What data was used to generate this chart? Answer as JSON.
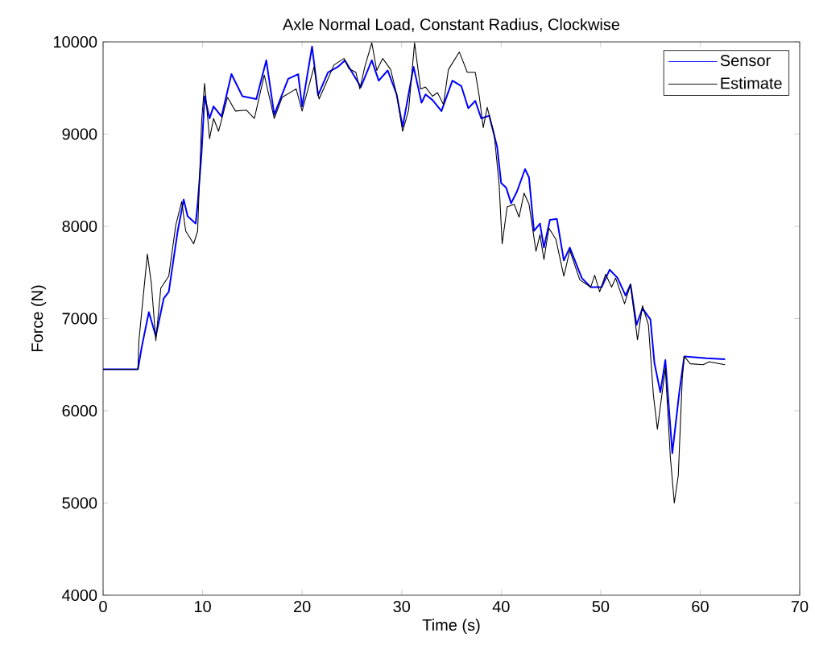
{
  "chart_data": {
    "type": "line",
    "title": "Axle Normal Load, Constant Radius, Clockwise",
    "xlabel": "Time (s)",
    "ylabel": "Force (N)",
    "xlim": [
      0,
      70
    ],
    "ylim": [
      4000,
      10000
    ],
    "xticks": [
      0,
      10,
      20,
      30,
      40,
      50,
      60,
      70
    ],
    "yticks": [
      4000,
      5000,
      6000,
      7000,
      8000,
      9000,
      10000
    ],
    "legend": "top right",
    "grid": false,
    "marker": "none",
    "line_style": "solid",
    "series": [
      {
        "name": "Sensor",
        "color": "#0000ff",
        "x": [
          0,
          3.5,
          3.9,
          4.6,
          5.3,
          6.1,
          6.6,
          7.5,
          8.1,
          8.5,
          9.3,
          9.5,
          9.9,
          10.2,
          10.7,
          11.1,
          11.9,
          12.9,
          14.0,
          15.4,
          16.4,
          17.2,
          18.6,
          19.6,
          20.0,
          21.0,
          21.6,
          22.6,
          23.6,
          24.3,
          25.9,
          27.0,
          27.7,
          28.6,
          29.5,
          30.1,
          31.2,
          32.0,
          32.4,
          33.1,
          34.0,
          35.1,
          36.0,
          36.7,
          37.4,
          38.0,
          38.8,
          39.6,
          40.0,
          40.5,
          41.0,
          41.6,
          42.4,
          42.8,
          43.3,
          43.9,
          44.3,
          44.9,
          45.6,
          46.3,
          46.9,
          48.1,
          49.0,
          50.1,
          50.9,
          51.7,
          52.5,
          53.0,
          53.6,
          54.2,
          55.0,
          55.4,
          56.0,
          56.5,
          57.2,
          57.9,
          58.4,
          60.6,
          62.5
        ],
        "values": [
          6450,
          6450,
          6700,
          7070,
          6810,
          7220,
          7290,
          7950,
          8290,
          8110,
          8030,
          8240,
          8800,
          9410,
          9170,
          9300,
          9190,
          9650,
          9410,
          9380,
          9800,
          9210,
          9600,
          9650,
          9300,
          9950,
          9420,
          9670,
          9730,
          9800,
          9510,
          9800,
          9580,
          9690,
          9430,
          9080,
          9730,
          9340,
          9430,
          9370,
          9250,
          9580,
          9520,
          9280,
          9360,
          9170,
          9200,
          8860,
          8470,
          8420,
          8250,
          8380,
          8620,
          8530,
          7950,
          8030,
          7770,
          8070,
          8080,
          7630,
          7770,
          7440,
          7340,
          7340,
          7530,
          7440,
          7250,
          7370,
          6930,
          7110,
          6990,
          6520,
          6200,
          6550,
          5540,
          6200,
          6590,
          6570,
          6560
        ]
      },
      {
        "name": "Estimate",
        "color": "#000000",
        "x": [
          0,
          3.5,
          3.6,
          4.45,
          4.85,
          5.3,
          5.8,
          6.6,
          7.3,
          7.9,
          8.3,
          9.1,
          9.5,
          9.9,
          10.2,
          10.7,
          11.1,
          11.6,
          12.5,
          13.3,
          14.4,
          15.2,
          16.2,
          17.2,
          18.0,
          19.4,
          20.0,
          21.2,
          21.7,
          22.4,
          23.2,
          24.2,
          24.7,
          25.4,
          25.8,
          26.3,
          27.0,
          27.5,
          28.1,
          28.9,
          29.5,
          30.1,
          30.7,
          31.3,
          31.9,
          32.4,
          33.1,
          33.6,
          34.2,
          34.7,
          35.8,
          36.6,
          37.4,
          37.8,
          38.2,
          38.6,
          39.3,
          39.8,
          40.1,
          40.6,
          41.3,
          41.8,
          42.3,
          42.8,
          43.5,
          43.9,
          44.3,
          44.8,
          45.5,
          46.3,
          46.9,
          47.9,
          49.0,
          49.4,
          49.9,
          50.5,
          51.1,
          51.5,
          52.4,
          53.0,
          53.7,
          54.2,
          54.8,
          55.3,
          55.7,
          56.5,
          57.0,
          57.4,
          57.8,
          58.2,
          58.4,
          59.0,
          60.3,
          60.9,
          62.5
        ],
        "values": [
          6450,
          6450,
          6760,
          7700,
          7380,
          6760,
          7330,
          7460,
          8010,
          8270,
          7950,
          7810,
          7950,
          9140,
          9550,
          8950,
          9170,
          9030,
          9400,
          9250,
          9260,
          9170,
          9640,
          9170,
          9400,
          9490,
          9250,
          9730,
          9380,
          9550,
          9750,
          9820,
          9710,
          9670,
          9490,
          9730,
          9990,
          9690,
          9820,
          9700,
          9430,
          9030,
          9260,
          9990,
          9490,
          9510,
          9410,
          9450,
          9320,
          9700,
          9890,
          9670,
          9670,
          9410,
          9070,
          9290,
          9000,
          8450,
          7810,
          8210,
          8240,
          8100,
          8360,
          8240,
          7730,
          7910,
          7640,
          7980,
          7860,
          7460,
          7740,
          7420,
          7340,
          7470,
          7290,
          7480,
          7340,
          7440,
          7160,
          7370,
          6770,
          7140,
          6930,
          6170,
          5800,
          6460,
          5500,
          5000,
          5300,
          6350,
          6590,
          6510,
          6500,
          6530,
          6500
        ]
      }
    ]
  }
}
